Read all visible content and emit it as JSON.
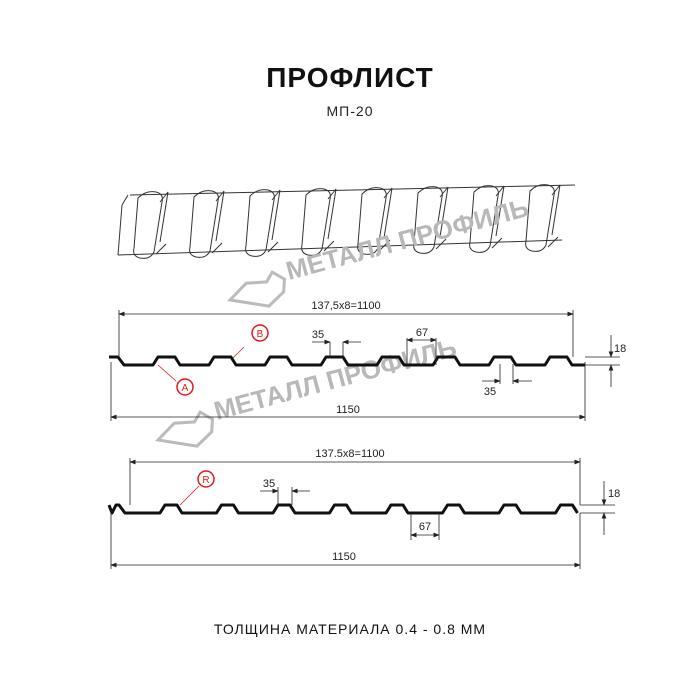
{
  "header": {
    "title": "ПРОФЛИСТ",
    "model": "МП-20"
  },
  "watermark": {
    "text": "МЕТАЛЛ ПРОФИЛЬ"
  },
  "profile_top": {
    "pitch_label": "137,5x8=1100",
    "total_label": "1150",
    "crest_label": "35",
    "pitch_gap_label": "67",
    "valley_label": "35",
    "height_label": "18",
    "markers": [
      "B",
      "A"
    ]
  },
  "profile_bottom": {
    "pitch_label": "137.5x8=1100",
    "total_label": "1150",
    "crest_label": "35",
    "pitch_gap_label": "67",
    "height_label": "18",
    "markers": [
      "R"
    ]
  },
  "footer": {
    "thickness": "ТОЛЩИНА МАТЕРИАЛА 0.4 - 0.8 ММ"
  },
  "colors": {
    "line": "#111111",
    "marker": "#e0191b",
    "watermark": "#b8b8b8"
  }
}
